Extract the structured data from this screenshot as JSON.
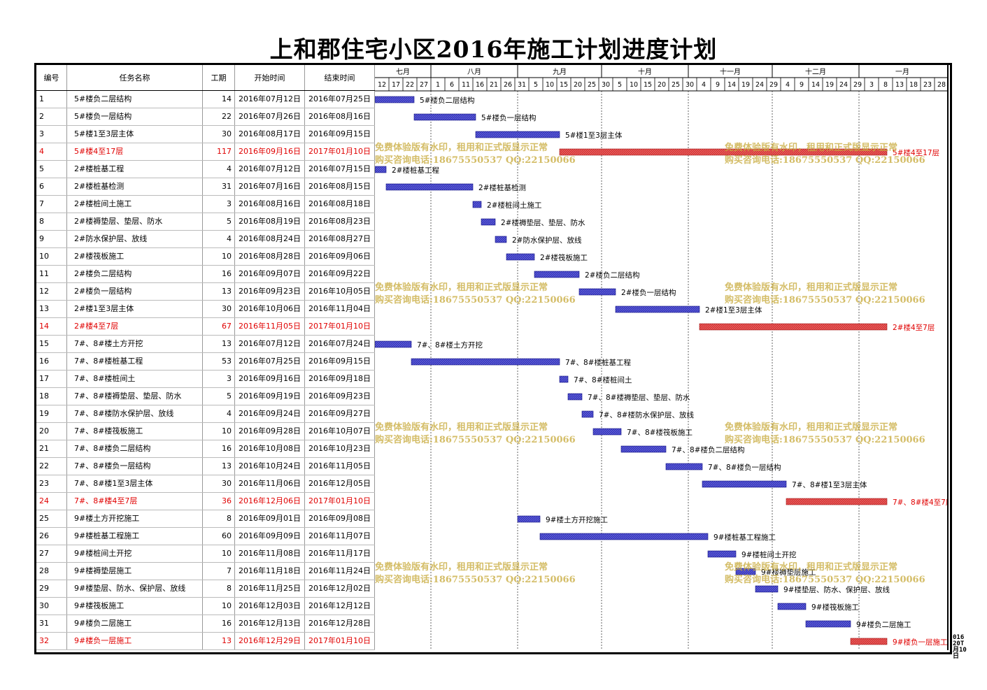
{
  "title": "上和郡住宅小区2016年施工计划进度计划",
  "columns": {
    "id": "编号",
    "name": "任务名称",
    "duration": "工期",
    "start": "开始时间",
    "end": "结束时间"
  },
  "watermark": {
    "line1": "免费体验版有水印，租用和正式版显示正常",
    "line2": "购买咨询电话:18675550537 QQ:22150066"
  },
  "corner_fragment": [
    "016",
    "20T",
    "月10",
    "日"
  ],
  "colors": {
    "normal_bar": "#3030c0",
    "critical_bar": "#d83030",
    "critical_text": "#e00000",
    "watermark": "#c8aa3c"
  },
  "chart_data": {
    "type": "gantt",
    "timeline_start": "2016-07-12",
    "months": [
      {
        "label": "七月",
        "start": "2016-07-12",
        "end": "2016-08-01"
      },
      {
        "label": "八月",
        "start": "2016-08-01",
        "end": "2016-09-01"
      },
      {
        "label": "九月",
        "start": "2016-09-01",
        "end": "2016-10-01"
      },
      {
        "label": "十月",
        "start": "2016-10-01",
        "end": "2016-11-01"
      },
      {
        "label": "十一月",
        "start": "2016-11-01",
        "end": "2016-12-01"
      },
      {
        "label": "十二月",
        "start": "2016-12-01",
        "end": "2017-01-01"
      },
      {
        "label": "一月",
        "start": "2017-01-01",
        "end": "2017-02-01"
      }
    ],
    "day_ticks": [
      "12",
      "17",
      "22",
      "27",
      "1",
      "6",
      "11",
      "16",
      "21",
      "26",
      "31",
      "5",
      "10",
      "15",
      "20",
      "25",
      "30",
      "5",
      "10",
      "15",
      "20",
      "25",
      "30",
      "4",
      "9",
      "14",
      "19",
      "24",
      "29",
      "4",
      "9",
      "14",
      "19",
      "24",
      "29",
      "3",
      "8",
      "13",
      "18",
      "23",
      "28"
    ],
    "tasks": [
      {
        "id": "1",
        "name": "5#楼负二层结构",
        "duration": "14",
        "start": "2016年07月12日",
        "end": "2016年07月25日",
        "critical": false,
        "d0": "2016-07-12",
        "d1": "2016-07-26"
      },
      {
        "id": "2",
        "name": "5#楼负一层结构",
        "duration": "22",
        "start": "2016年07月26日",
        "end": "2016年08月16日",
        "critical": false,
        "d0": "2016-07-26",
        "d1": "2016-08-17"
      },
      {
        "id": "3",
        "name": "5#楼1至3层主体",
        "duration": "30",
        "start": "2016年08月17日",
        "end": "2016年09月15日",
        "critical": false,
        "d0": "2016-08-17",
        "d1": "2016-09-16"
      },
      {
        "id": "4",
        "name": "5#楼4至17层",
        "duration": "117",
        "start": "2016年09月16日",
        "end": "2017年01月10日",
        "critical": true,
        "d0": "2016-09-16",
        "d1": "2017-01-11"
      },
      {
        "id": "5",
        "name": "2#楼桩基工程",
        "duration": "4",
        "start": "2016年07月12日",
        "end": "2016年07月15日",
        "critical": false,
        "d0": "2016-07-12",
        "d1": "2016-07-16"
      },
      {
        "id": "6",
        "name": "2#楼桩基检测",
        "duration": "31",
        "start": "2016年07月16日",
        "end": "2016年08月15日",
        "critical": false,
        "d0": "2016-07-16",
        "d1": "2016-08-16"
      },
      {
        "id": "7",
        "name": "2#楼桩间土施工",
        "duration": "3",
        "start": "2016年08月16日",
        "end": "2016年08月18日",
        "critical": false,
        "d0": "2016-08-16",
        "d1": "2016-08-19"
      },
      {
        "id": "8",
        "name": "2#楼褥垫层、垫层、防水",
        "duration": "5",
        "start": "2016年08月19日",
        "end": "2016年08月23日",
        "critical": false,
        "d0": "2016-08-19",
        "d1": "2016-08-24"
      },
      {
        "id": "9",
        "name": "2#防水保护层、放线",
        "duration": "4",
        "start": "2016年08月24日",
        "end": "2016年08月27日",
        "critical": false,
        "d0": "2016-08-24",
        "d1": "2016-08-28"
      },
      {
        "id": "10",
        "name": "2#楼筏板施工",
        "duration": "10",
        "start": "2016年08月28日",
        "end": "2016年09月06日",
        "critical": false,
        "d0": "2016-08-28",
        "d1": "2016-09-07"
      },
      {
        "id": "11",
        "name": "2#楼负二层结构",
        "duration": "16",
        "start": "2016年09月07日",
        "end": "2016年09月22日",
        "critical": false,
        "d0": "2016-09-07",
        "d1": "2016-09-23"
      },
      {
        "id": "12",
        "name": "2#楼负一层结构",
        "duration": "13",
        "start": "2016年09月23日",
        "end": "2016年10月05日",
        "critical": false,
        "d0": "2016-09-23",
        "d1": "2016-10-06"
      },
      {
        "id": "13",
        "name": "2#楼1至3层主体",
        "duration": "30",
        "start": "2016年10月06日",
        "end": "2016年11月04日",
        "critical": false,
        "d0": "2016-10-06",
        "d1": "2016-11-05"
      },
      {
        "id": "14",
        "name": "2#楼4至7层",
        "duration": "67",
        "start": "2016年11月05日",
        "end": "2017年01月10日",
        "critical": true,
        "d0": "2016-11-05",
        "d1": "2017-01-11"
      },
      {
        "id": "15",
        "name": "7#、8#楼土方开挖",
        "duration": "13",
        "start": "2016年07月12日",
        "end": "2016年07月24日",
        "critical": false,
        "d0": "2016-07-12",
        "d1": "2016-07-25"
      },
      {
        "id": "16",
        "name": "7#、8#楼桩基工程",
        "duration": "53",
        "start": "2016年07月25日",
        "end": "2016年09月15日",
        "critical": false,
        "d0": "2016-07-25",
        "d1": "2016-09-16"
      },
      {
        "id": "17",
        "name": "7#、8#楼桩间土",
        "duration": "3",
        "start": "2016年09月16日",
        "end": "2016年09月18日",
        "critical": false,
        "d0": "2016-09-16",
        "d1": "2016-09-19"
      },
      {
        "id": "18",
        "name": "7#、8#楼褥垫层、垫层、防水",
        "duration": "5",
        "start": "2016年09月19日",
        "end": "2016年09月23日",
        "critical": false,
        "d0": "2016-09-19",
        "d1": "2016-09-24"
      },
      {
        "id": "19",
        "name": "7#、8#楼防水保护层、放线",
        "duration": "4",
        "start": "2016年09月24日",
        "end": "2016年09月27日",
        "critical": false,
        "d0": "2016-09-24",
        "d1": "2016-09-28"
      },
      {
        "id": "20",
        "name": "7#、8#楼筏板施工",
        "duration": "10",
        "start": "2016年09月28日",
        "end": "2016年10月07日",
        "critical": false,
        "d0": "2016-09-28",
        "d1": "2016-10-08"
      },
      {
        "id": "21",
        "name": "7#、8#楼负二层结构",
        "duration": "16",
        "start": "2016年10月08日",
        "end": "2016年10月23日",
        "critical": false,
        "d0": "2016-10-08",
        "d1": "2016-10-24"
      },
      {
        "id": "22",
        "name": "7#、8#楼负一层结构",
        "duration": "13",
        "start": "2016年10月24日",
        "end": "2016年11月05日",
        "critical": false,
        "d0": "2016-10-24",
        "d1": "2016-11-06"
      },
      {
        "id": "23",
        "name": "7#、8#楼1至3层主体",
        "duration": "30",
        "start": "2016年11月06日",
        "end": "2016年12月05日",
        "critical": false,
        "d0": "2016-11-06",
        "d1": "2016-12-06"
      },
      {
        "id": "24",
        "name": "7#、8#楼4至7层",
        "duration": "36",
        "start": "2016年12月06日",
        "end": "2017年01月10日",
        "critical": true,
        "d0": "2016-12-06",
        "d1": "2017-01-11"
      },
      {
        "id": "25",
        "name": "9#楼土方开挖施工",
        "duration": "8",
        "start": "2016年09月01日",
        "end": "2016年09月08日",
        "critical": false,
        "d0": "2016-09-01",
        "d1": "2016-09-09"
      },
      {
        "id": "26",
        "name": "9#楼桩基工程施工",
        "duration": "60",
        "start": "2016年09月09日",
        "end": "2016年11月07日",
        "critical": false,
        "d0": "2016-09-09",
        "d1": "2016-11-08"
      },
      {
        "id": "27",
        "name": "9#楼桩间土开挖",
        "duration": "10",
        "start": "2016年11月08日",
        "end": "2016年11月17日",
        "critical": false,
        "d0": "2016-11-08",
        "d1": "2016-11-18"
      },
      {
        "id": "28",
        "name": "9#楼褥垫层施工",
        "duration": "7",
        "start": "2016年11月18日",
        "end": "2016年11月24日",
        "critical": false,
        "d0": "2016-11-18",
        "d1": "2016-11-25"
      },
      {
        "id": "29",
        "name": "9#楼垫层、防水、保护层、放线",
        "duration": "8",
        "start": "2016年11月25日",
        "end": "2016年12月02日",
        "critical": false,
        "d0": "2016-11-25",
        "d1": "2016-12-03"
      },
      {
        "id": "30",
        "name": "9#楼筏板施工",
        "duration": "10",
        "start": "2016年12月03日",
        "end": "2016年12月12日",
        "critical": false,
        "d0": "2016-12-03",
        "d1": "2016-12-13"
      },
      {
        "id": "31",
        "name": "9#楼负二层施工",
        "duration": "16",
        "start": "2016年12月13日",
        "end": "2016年12月28日",
        "critical": false,
        "d0": "2016-12-13",
        "d1": "2016-12-29"
      },
      {
        "id": "32",
        "name": "9#楼负一层施工",
        "duration": "13",
        "start": "2016年12月29日",
        "end": "2017年01月10日",
        "critical": true,
        "d0": "2016-12-29",
        "d1": "2017-01-11"
      }
    ]
  }
}
